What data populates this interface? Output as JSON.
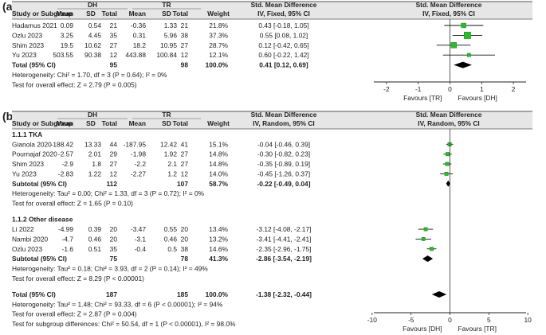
{
  "panels": [
    {
      "label": "(a)",
      "headers": {
        "group1": "DH",
        "group2": "TR",
        "study": "Study or Subgroup",
        "mean": "Mean",
        "sd": "SD",
        "total": "Total",
        "weight": "Weight",
        "effect_title": "Std. Mean Difference",
        "effect_method": "IV, Fixed, 95% CI",
        "plot_title": "Std. Mean Difference",
        "plot_method": "IV, Fixed, 95% CI"
      },
      "rows": [
        {
          "kind": "study",
          "name": "Hadamus 2021",
          "m1": "0.09",
          "sd1": "0.54",
          "n1": "21",
          "m2": "-0.36",
          "sd2": "1.33",
          "n2": "21",
          "weight": "21.8%",
          "ci": "0.43 [-0.18, 1.05]"
        },
        {
          "kind": "study",
          "name": "Ozlu 2023",
          "m1": "3.25",
          "sd1": "4.45",
          "n1": "35",
          "m2": "0.31",
          "sd2": "5.96",
          "n2": "38",
          "weight": "37.3%",
          "ci": "0.55 [0.08, 1.02]"
        },
        {
          "kind": "study",
          "name": "Shim 2023",
          "m1": "19.5",
          "sd1": "10.62",
          "n1": "27",
          "m2": "18.2",
          "sd2": "10.95",
          "n2": "27",
          "weight": "28.7%",
          "ci": "0.12 [-0.42, 0.65]"
        },
        {
          "kind": "study",
          "name": "Yu 2023",
          "m1": "503.55",
          "sd1": "90.38",
          "n1": "12",
          "m2": "443.88",
          "sd2": "100.84",
          "n2": "12",
          "weight": "12.1%",
          "ci": "0.60 [-0.22, 1.42]"
        },
        {
          "kind": "total",
          "name": "Total (95% CI)",
          "n1": "95",
          "n2": "98",
          "weight": "100.0%",
          "ci": "0.41 [0.12, 0.69]"
        },
        {
          "kind": "note",
          "text": "Heterogeneity: Chi² = 1.70, df = 3 (P = 0.64); I² = 0%"
        },
        {
          "kind": "note",
          "text": "Test for overall effect: Z = 2.79 (P = 0.005)"
        }
      ]
    },
    {
      "label": "(b)",
      "headers": {
        "group1": "DH",
        "group2": "TR",
        "study": "Study or Subgroup",
        "mean": "Mean",
        "sd": "SD",
        "total": "Total",
        "weight": "Weight",
        "effect_title": "Std. Mean Difference",
        "effect_method": "IV, Random, 95% CI",
        "plot_title": "Std. Mean Difference",
        "plot_method": "IV, Random, 95% CI"
      },
      "rows": [
        {
          "kind": "heading",
          "text": "1.1.1 TKA"
        },
        {
          "kind": "study",
          "name": "Gianola 2020",
          "m1": "-188.42",
          "sd1": "13.33",
          "n1": "44",
          "m2": "-187.95",
          "sd2": "12.42",
          "n2": "41",
          "weight": "15.1%",
          "ci": "-0.04 [-0.46, 0.39]"
        },
        {
          "kind": "study",
          "name": "Pournajaf 2020",
          "m1": "-2.57",
          "sd1": "2.01",
          "n1": "29",
          "m2": "-1.98",
          "sd2": "1.92",
          "n2": "27",
          "weight": "14.8%",
          "ci": "-0.30 [-0.82, 0.23]"
        },
        {
          "kind": "study",
          "name": "Shim 2023",
          "m1": "-2.9",
          "sd1": "1.8",
          "n1": "27",
          "m2": "-2.2",
          "sd2": "2.1",
          "n2": "27",
          "weight": "14.8%",
          "ci": "-0.35 [-0.89, 0.19]"
        },
        {
          "kind": "study",
          "name": "Yu 2023",
          "m1": "-2.83",
          "sd1": "1.22",
          "n1": "12",
          "m2": "-2.27",
          "sd2": "1.2",
          "n2": "12",
          "weight": "14.0%",
          "ci": "-0.45 [-1.26, 0.37]"
        },
        {
          "kind": "subtotal",
          "name": "Subtotal (95% CI)",
          "n1": "112",
          "n2": "107",
          "weight": "58.7%",
          "ci": "-0.22 [-0.49, 0.04]"
        },
        {
          "kind": "note",
          "text": "Heterogeneity: Tau² = 0.00; Chi² = 1.33, df = 3 (P = 0.72); I² = 0%"
        },
        {
          "kind": "note",
          "text": "Test for overall effect: Z = 1.65 (P = 0.10)"
        },
        {
          "kind": "blank"
        },
        {
          "kind": "heading",
          "text": "1.1.2 Other disease"
        },
        {
          "kind": "study",
          "name": "Li 2022",
          "m1": "-4.99",
          "sd1": "0.39",
          "n1": "20",
          "m2": "-3.47",
          "sd2": "0.55",
          "n2": "20",
          "weight": "13.4%",
          "ci": "-3.12 [-4.08, -2.17]"
        },
        {
          "kind": "study",
          "name": "Nambi 2020",
          "m1": "-4.7",
          "sd1": "0.46",
          "n1": "20",
          "m2": "-3.1",
          "sd2": "0.46",
          "n2": "20",
          "weight": "13.2%",
          "ci": "-3.41 [-4.41, -2.41]"
        },
        {
          "kind": "study",
          "name": "Ozlu 2023",
          "m1": "-1.6",
          "sd1": "0.51",
          "n1": "35",
          "m2": "-0.4",
          "sd2": "0.5",
          "n2": "38",
          "weight": "14.6%",
          "ci": "-2.35 [-2.96, -1.75]"
        },
        {
          "kind": "subtotal",
          "name": "Subtotal (95% CI)",
          "n1": "75",
          "n2": "78",
          "weight": "41.3%",
          "ci": "-2.86 [-3.54, -2.19]"
        },
        {
          "kind": "note",
          "text": "Heterogeneity: Tau² = 0.18; Chi² = 3.93, df = 2 (P = 0.14); I² = 49%"
        },
        {
          "kind": "note",
          "text": "Test for overall effect: Z = 8.29 (P < 0.00001)"
        },
        {
          "kind": "blank"
        },
        {
          "kind": "total",
          "name": "Total (95% CI)",
          "n1": "187",
          "n2": "185",
          "weight": "100.0%",
          "ci": "-1.38 [-2.32, -0.44]"
        },
        {
          "kind": "note",
          "text": "Heterogeneity: Tau² = 1.48; Chi² = 93.33, df = 6 (P < 0.00001); I² = 94%"
        },
        {
          "kind": "note",
          "text": "Test for overall effect: Z = 2.87 (P = 0.004)"
        },
        {
          "kind": "note",
          "text": "Test for subgroup differences: Chi² = 50.54, df = 1 (P < 0.00001), I² = 98.0%"
        }
      ]
    }
  ],
  "chart_data": [
    {
      "type": "forest",
      "panel": "(a)",
      "title": "Std. Mean Difference",
      "subtitle": "IV, Fixed, 95% CI",
      "xlim": [
        -2.6,
        2.6
      ],
      "ticks": [
        -2,
        -1,
        0,
        1,
        2
      ],
      "left_label": "Favours [TR]",
      "right_label": "Favours [DH]",
      "studies": [
        {
          "name": "Hadamus 2021",
          "est": 0.43,
          "lo": -0.18,
          "hi": 1.05,
          "weight": 21.8
        },
        {
          "name": "Ozlu 2023",
          "est": 0.55,
          "lo": 0.08,
          "hi": 1.02,
          "weight": 37.3
        },
        {
          "name": "Shim 2023",
          "est": 0.12,
          "lo": -0.42,
          "hi": 0.65,
          "weight": 28.7
        },
        {
          "name": "Yu 2023",
          "est": 0.6,
          "lo": -0.22,
          "hi": 1.42,
          "weight": 12.1
        }
      ],
      "pooled": [
        {
          "name": "Total (95% CI)",
          "est": 0.41,
          "lo": 0.12,
          "hi": 0.69
        }
      ]
    },
    {
      "type": "forest",
      "panel": "(b)",
      "title": "Std. Mean Difference",
      "subtitle": "IV, Random, 95% CI",
      "xlim": [
        -10.6,
        10.6
      ],
      "ticks": [
        -10,
        -5,
        0,
        5,
        10
      ],
      "left_label": "Favours [DH]",
      "right_label": "Favours [TR]",
      "studies": [
        {
          "name": "Gianola 2020",
          "est": -0.04,
          "lo": -0.46,
          "hi": 0.39,
          "weight": 15.1
        },
        {
          "name": "Pournajaf 2020",
          "est": -0.3,
          "lo": -0.82,
          "hi": 0.23,
          "weight": 14.8
        },
        {
          "name": "Shim 2023",
          "est": -0.35,
          "lo": -0.89,
          "hi": 0.19,
          "weight": 14.8
        },
        {
          "name": "Yu 2023",
          "est": -0.45,
          "lo": -1.26,
          "hi": 0.37,
          "weight": 14.0
        },
        {
          "name": "Li 2022",
          "est": -3.12,
          "lo": -4.08,
          "hi": -2.17,
          "weight": 13.4
        },
        {
          "name": "Nambi 2020",
          "est": -3.41,
          "lo": -4.41,
          "hi": -2.41,
          "weight": 13.2
        },
        {
          "name": "Ozlu 2023",
          "est": -2.35,
          "lo": -2.96,
          "hi": -1.75,
          "weight": 14.6
        }
      ],
      "pooled": [
        {
          "name": "Subtotal TKA",
          "est": -0.22,
          "lo": -0.49,
          "hi": 0.04
        },
        {
          "name": "Subtotal Other disease",
          "est": -2.86,
          "lo": -3.54,
          "hi": -2.19
        },
        {
          "name": "Total (95% CI)",
          "est": -1.38,
          "lo": -2.32,
          "hi": -0.44
        }
      ]
    }
  ],
  "colors": {
    "square": "#2eb82e",
    "square_edge": "#1f8a1f",
    "diamond": "#000000",
    "rule": "#555555",
    "header_bg": "#e6e6e6",
    "text": "#222222"
  }
}
